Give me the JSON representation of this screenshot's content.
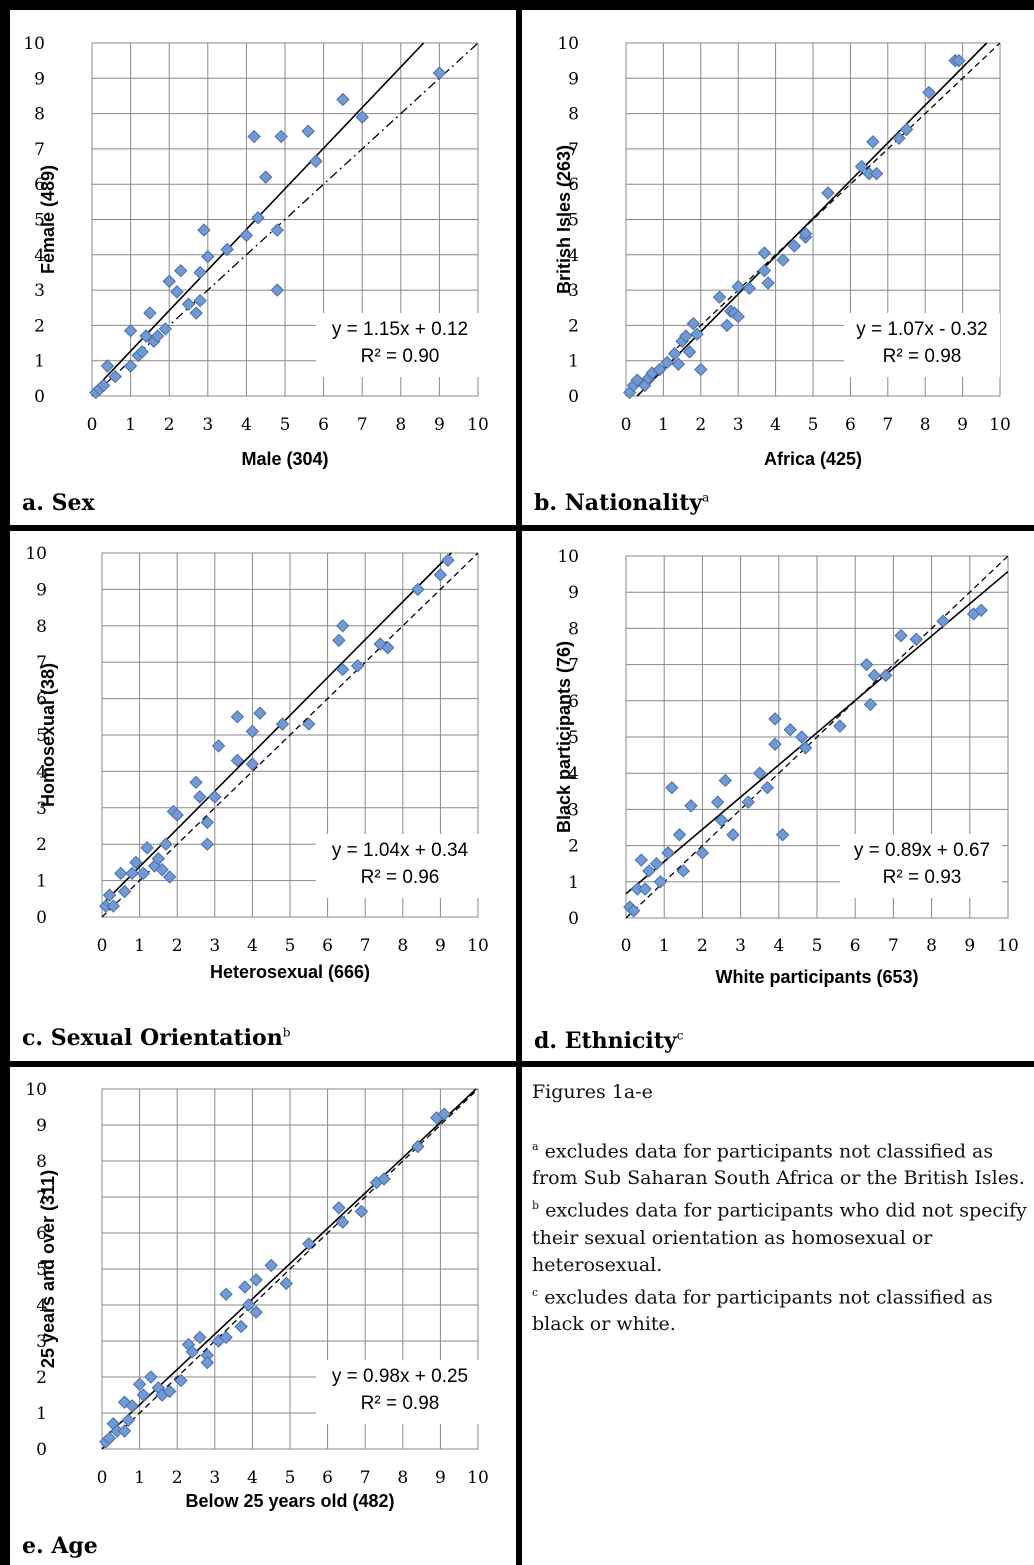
{
  "notes": {
    "title": "Figures 1a-e",
    "items": [
      {
        "mark": "a",
        "text": "excludes data for participants not classified as from Sub Saharan South Africa or the British Isles."
      },
      {
        "mark": "b",
        "text": "excludes data for participants who did not specify their sexual orientation as homosexual or heterosexual."
      },
      {
        "mark": "c",
        "text": "excludes data for participants not classified as black or white."
      }
    ]
  },
  "chart_data": [
    {
      "type": "scatter",
      "label": "a. Sex",
      "label_mark": "",
      "xlabel": "Male (304)",
      "ylabel": "Female (489)",
      "xlim": [
        0,
        10
      ],
      "ylim": [
        0,
        10
      ],
      "ticks": [
        "0",
        "1",
        "2",
        "3",
        "4",
        "5",
        "6",
        "7",
        "8",
        "9",
        "10"
      ],
      "grid": true,
      "reference_line": "dash-dot",
      "trendline": {
        "slope": 1.15,
        "intercept": 0.12
      },
      "equation": "y = 1.15x + 0.12",
      "r2": "R² = 0.90",
      "points": [
        [
          0.1,
          0.1
        ],
        [
          0.2,
          0.2
        ],
        [
          0.3,
          0.3
        ],
        [
          0.4,
          0.85
        ],
        [
          0.6,
          0.55
        ],
        [
          1,
          1.85
        ],
        [
          1,
          0.85
        ],
        [
          1.2,
          1.15
        ],
        [
          1.3,
          1.25
        ],
        [
          1.4,
          1.7
        ],
        [
          1.5,
          2.35
        ],
        [
          1.6,
          1.55
        ],
        [
          1.7,
          1.7
        ],
        [
          1.9,
          1.9
        ],
        [
          2,
          3.25
        ],
        [
          2.2,
          2.95
        ],
        [
          2.3,
          3.55
        ],
        [
          2.5,
          2.6
        ],
        [
          2.7,
          2.35
        ],
        [
          2.8,
          2.7
        ],
        [
          2.8,
          3.5
        ],
        [
          2.9,
          4.7
        ],
        [
          3,
          3.95
        ],
        [
          3.5,
          4.15
        ],
        [
          4,
          4.55
        ],
        [
          4.2,
          7.35
        ],
        [
          4.3,
          5.05
        ],
        [
          4.5,
          6.2
        ],
        [
          4.8,
          4.7
        ],
        [
          4.8,
          3.0
        ],
        [
          4.9,
          7.35
        ],
        [
          5.6,
          7.5
        ],
        [
          5.8,
          6.65
        ],
        [
          6.5,
          8.4
        ],
        [
          7,
          7.9
        ],
        [
          9,
          9.15
        ]
      ]
    },
    {
      "type": "scatter",
      "label": "b. Nationality",
      "label_mark": "a",
      "xlabel": "Africa (425)",
      "ylabel": "British Isles (263)",
      "xlim": [
        0,
        10
      ],
      "ylim": [
        0,
        10
      ],
      "ticks": [
        "0",
        "1",
        "2",
        "3",
        "4",
        "5",
        "6",
        "7",
        "8",
        "9",
        "10"
      ],
      "grid": true,
      "reference_line": "dashed",
      "trendline": {
        "slope": 1.07,
        "intercept": -0.32
      },
      "equation": "y = 1.07x - 0.32",
      "r2": "R² = 0.98",
      "points": [
        [
          0.1,
          0.1
        ],
        [
          0.2,
          0.3
        ],
        [
          0.3,
          0.45
        ],
        [
          0.5,
          0.3
        ],
        [
          0.6,
          0.5
        ],
        [
          0.7,
          0.65
        ],
        [
          0.9,
          0.75
        ],
        [
          1.1,
          0.95
        ],
        [
          1.3,
          1.2
        ],
        [
          1.4,
          0.9
        ],
        [
          1.5,
          1.55
        ],
        [
          1.6,
          1.7
        ],
        [
          1.7,
          1.25
        ],
        [
          1.8,
          2.05
        ],
        [
          1.9,
          1.75
        ],
        [
          2,
          0.75
        ],
        [
          2.5,
          2.8
        ],
        [
          2.7,
          2.0
        ],
        [
          2.8,
          2.4
        ],
        [
          2.9,
          2.35
        ],
        [
          3,
          3.1
        ],
        [
          3,
          2.25
        ],
        [
          3.3,
          3.05
        ],
        [
          3.7,
          3.55
        ],
        [
          3.7,
          4.05
        ],
        [
          3.8,
          3.2
        ],
        [
          4.2,
          3.85
        ],
        [
          4.5,
          4.25
        ],
        [
          4.8,
          4.5
        ],
        [
          4.8,
          4.6
        ],
        [
          5.4,
          5.75
        ],
        [
          6.3,
          6.5
        ],
        [
          6.5,
          6.3
        ],
        [
          6.6,
          7.2
        ],
        [
          6.7,
          6.3
        ],
        [
          7.3,
          7.3
        ],
        [
          7.5,
          7.55
        ],
        [
          8.1,
          8.6
        ],
        [
          8.8,
          9.5
        ],
        [
          8.9,
          9.5
        ]
      ]
    },
    {
      "type": "scatter",
      "label": "c. Sexual Orientation",
      "label_mark": "b",
      "xlabel": "Heterosexual (666)",
      "ylabel": "Homosexual (38)",
      "xlim": [
        0,
        10
      ],
      "ylim": [
        0,
        10
      ],
      "ticks": [
        "0",
        "1",
        "2",
        "3",
        "4",
        "5",
        "6",
        "7",
        "8",
        "9",
        "10"
      ],
      "grid": true,
      "reference_line": "dashed",
      "trendline": {
        "slope": 1.04,
        "intercept": 0.34
      },
      "equation": "y = 1.04x + 0.34",
      "r2": "R² = 0.96",
      "points": [
        [
          0.1,
          0.3
        ],
        [
          0.2,
          0.6
        ],
        [
          0.3,
          0.3
        ],
        [
          0.5,
          1.2
        ],
        [
          0.6,
          0.7
        ],
        [
          0.8,
          1.2
        ],
        [
          0.9,
          1.5
        ],
        [
          1.1,
          1.2
        ],
        [
          1.2,
          1.9
        ],
        [
          1.4,
          1.4
        ],
        [
          1.5,
          1.6
        ],
        [
          1.6,
          1.3
        ],
        [
          1.7,
          2.0
        ],
        [
          1.8,
          1.1
        ],
        [
          1.9,
          2.9
        ],
        [
          2,
          2.8
        ],
        [
          2.5,
          3.7
        ],
        [
          2.6,
          3.3
        ],
        [
          2.8,
          2.6
        ],
        [
          2.8,
          2.0
        ],
        [
          3,
          3.3
        ],
        [
          3.1,
          4.7
        ],
        [
          3.6,
          5.5
        ],
        [
          3.6,
          4.3
        ],
        [
          4,
          4.2
        ],
        [
          4,
          5.1
        ],
        [
          4.2,
          5.6
        ],
        [
          4.8,
          5.3
        ],
        [
          5.5,
          5.3
        ],
        [
          6.3,
          7.6
        ],
        [
          6.4,
          8.0
        ],
        [
          6.4,
          6.8
        ],
        [
          6.8,
          6.9
        ],
        [
          7.4,
          7.5
        ],
        [
          7.6,
          7.4
        ],
        [
          8.4,
          9.0
        ],
        [
          9,
          9.4
        ],
        [
          9.2,
          9.8
        ]
      ]
    },
    {
      "type": "scatter",
      "label": "d. Ethnicity",
      "label_mark": "c",
      "xlabel": "White participants (653)",
      "ylabel": "Black participants (76)",
      "xlim": [
        0,
        10
      ],
      "ylim": [
        0,
        10
      ],
      "ticks": [
        "0",
        "1",
        "2",
        "3",
        "4",
        "5",
        "6",
        "7",
        "8",
        "9",
        "10"
      ],
      "grid": true,
      "reference_line": "dashed",
      "trendline": {
        "slope": 0.89,
        "intercept": 0.67
      },
      "equation": "y = 0.89x + 0.67",
      "r2": "R² = 0.93",
      "points": [
        [
          0.1,
          0.3
        ],
        [
          0.2,
          0.2
        ],
        [
          0.3,
          0.8
        ],
        [
          0.4,
          1.6
        ],
        [
          0.5,
          0.8
        ],
        [
          0.6,
          1.3
        ],
        [
          0.8,
          1.5
        ],
        [
          0.9,
          1.0
        ],
        [
          1.1,
          1.8
        ],
        [
          1.2,
          3.6
        ],
        [
          1.4,
          2.3
        ],
        [
          1.5,
          1.3
        ],
        [
          1.7,
          3.1
        ],
        [
          2,
          1.8
        ],
        [
          2.4,
          3.2
        ],
        [
          2.5,
          2.7
        ],
        [
          2.6,
          3.8
        ],
        [
          2.8,
          2.3
        ],
        [
          3.2,
          3.2
        ],
        [
          3.5,
          4.0
        ],
        [
          3.7,
          3.6
        ],
        [
          3.9,
          5.5
        ],
        [
          3.9,
          4.8
        ],
        [
          4.1,
          2.3
        ],
        [
          4.3,
          5.2
        ],
        [
          4.6,
          5.0
        ],
        [
          4.7,
          4.7
        ],
        [
          5.6,
          5.3
        ],
        [
          6.3,
          7.0
        ],
        [
          6.4,
          5.9
        ],
        [
          6.5,
          6.7
        ],
        [
          6.8,
          6.7
        ],
        [
          7.2,
          7.8
        ],
        [
          7.6,
          7.7
        ],
        [
          8.3,
          8.2
        ],
        [
          9.1,
          8.4
        ],
        [
          9.3,
          8.5
        ]
      ]
    },
    {
      "type": "scatter",
      "label": "e. Age",
      "label_mark": "",
      "xlabel": "Below 25 years old (482)",
      "ylabel": "25 years and over (311)",
      "xlim": [
        0,
        10
      ],
      "ylim": [
        0,
        10
      ],
      "ticks": [
        "0",
        "1",
        "2",
        "3",
        "4",
        "5",
        "6",
        "7",
        "8",
        "9",
        "10"
      ],
      "grid": true,
      "reference_line": "dashed",
      "trendline": {
        "slope": 0.98,
        "intercept": 0.25
      },
      "equation": "y = 0.98x + 0.25",
      "r2": "R² = 0.98",
      "points": [
        [
          0.1,
          0.2
        ],
        [
          0.2,
          0.3
        ],
        [
          0.3,
          0.7
        ],
        [
          0.4,
          0.5
        ],
        [
          0.6,
          1.3
        ],
        [
          0.6,
          0.5
        ],
        [
          0.7,
          0.8
        ],
        [
          0.8,
          1.2
        ],
        [
          1,
          1.8
        ],
        [
          1.1,
          1.5
        ],
        [
          1.3,
          2.0
        ],
        [
          1.5,
          1.7
        ],
        [
          1.6,
          1.5
        ],
        [
          1.8,
          1.6
        ],
        [
          2.1,
          1.9
        ],
        [
          2.3,
          2.9
        ],
        [
          2.4,
          2.7
        ],
        [
          2.6,
          3.1
        ],
        [
          2.8,
          2.6
        ],
        [
          2.8,
          2.4
        ],
        [
          3.1,
          3.0
        ],
        [
          3.3,
          4.3
        ],
        [
          3.3,
          3.1
        ],
        [
          3.7,
          3.4
        ],
        [
          3.8,
          4.5
        ],
        [
          3.9,
          4.0
        ],
        [
          4.1,
          4.7
        ],
        [
          4.1,
          3.8
        ],
        [
          4.5,
          5.1
        ],
        [
          4.9,
          4.6
        ],
        [
          5.5,
          5.7
        ],
        [
          6.3,
          6.7
        ],
        [
          6.4,
          6.3
        ],
        [
          6.9,
          6.6
        ],
        [
          7.3,
          7.4
        ],
        [
          7.5,
          7.5
        ],
        [
          8.4,
          8.4
        ],
        [
          8.9,
          9.2
        ],
        [
          9.1,
          9.3
        ]
      ]
    }
  ]
}
